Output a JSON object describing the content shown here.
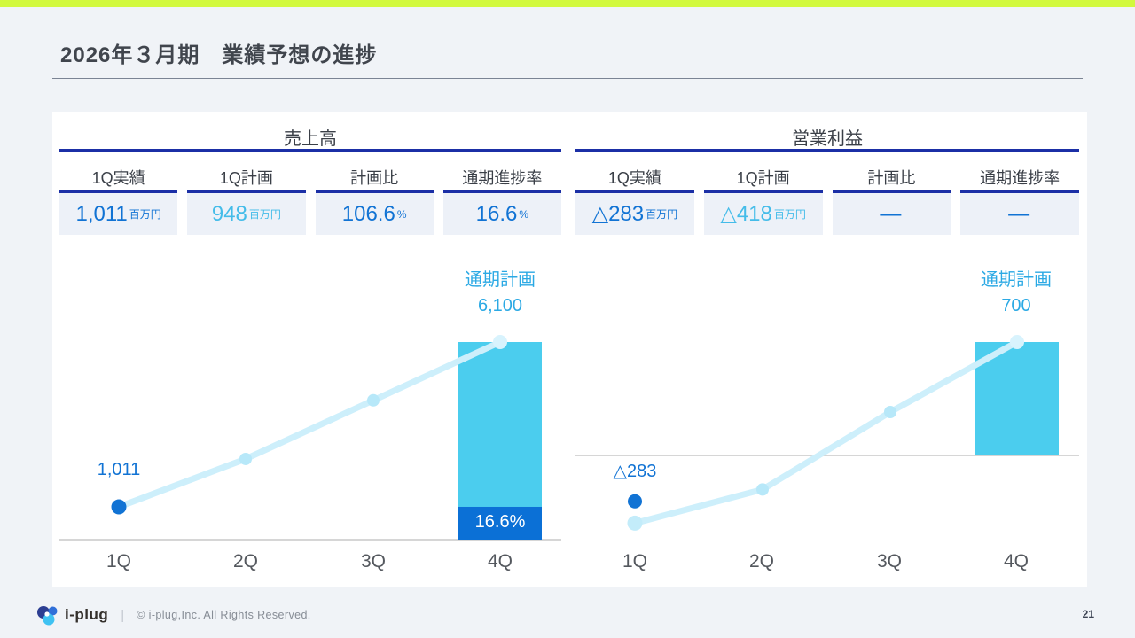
{
  "slide": {
    "title": "2026年３月期　業績予想の進捗",
    "page_number": "21"
  },
  "footer": {
    "brand": "i-plug",
    "separator": "|",
    "copyright": "© i-plug,Inc. All Rights Reserved."
  },
  "panels": [
    {
      "title": "売上高",
      "columns": [
        {
          "header": "1Q実績",
          "value": "1,011",
          "unit": "百万円",
          "tone": "actual"
        },
        {
          "header": "1Q計画",
          "value": "948",
          "unit": "百万円",
          "tone": "plan"
        },
        {
          "header": "計画比",
          "value": "106.6",
          "unit": "%",
          "tone": "actual"
        },
        {
          "header": "通期進捗率",
          "value": "16.6",
          "unit": "%",
          "tone": "actual"
        }
      ]
    },
    {
      "title": "営業利益",
      "columns": [
        {
          "header": "1Q実績",
          "value": "△283",
          "unit": "百万円",
          "tone": "actual"
        },
        {
          "header": "1Q計画",
          "value": "△418",
          "unit": "百万円",
          "tone": "plan"
        },
        {
          "header": "計画比",
          "value": "—",
          "unit": "",
          "tone": "actual"
        },
        {
          "header": "通期進捗率",
          "value": "—",
          "unit": "",
          "tone": "actual"
        }
      ]
    }
  ],
  "chart_data": [
    {
      "id": "sales",
      "type": "line+bar",
      "title": "売上高",
      "unit": "百万円",
      "categories": [
        "1Q",
        "2Q",
        "3Q",
        "4Q"
      ],
      "plan_line_est": [
        1011,
        2490,
        4300,
        6100
      ],
      "actual_1q": 1011,
      "actual_1q_label": "1,011",
      "actual_on_line": true,
      "full_year_bar": 6100,
      "plan_caption": "通期計画",
      "plan_caption_value": "6,100",
      "progress_pct": 16.6,
      "progress_label": "16.6%",
      "ylim": [
        0,
        6800
      ]
    },
    {
      "id": "profit",
      "type": "line+bar",
      "title": "営業利益",
      "unit": "百万円",
      "categories": [
        "1Q",
        "2Q",
        "3Q",
        "4Q"
      ],
      "plan_line_est": [
        -418,
        -210,
        268,
        700
      ],
      "actual_1q": -283,
      "actual_1q_label": "△283",
      "actual_on_line": false,
      "full_year_bar": 700,
      "plan_caption": "通期計画",
      "plan_caption_value": "700",
      "progress_pct": null,
      "progress_label": null,
      "ylim": [
        -550,
        800
      ]
    }
  ],
  "colors": {
    "accent_bar": "#d2f93e",
    "page_bg": "#f0f3f7",
    "navy_rule": "#1b2fa6",
    "actual_blue": "#1173d4",
    "plan_cyan": "#44bce9",
    "cell_bg": "#edf1f8",
    "bar_cyan": "#4bcdee",
    "progress_blue": "#0b70d6",
    "line_cyan": "#cdeffb",
    "marker_cyan": "#b7e8f9",
    "marker_first": "#c3ecfa",
    "marker_end": "#d8f3fd",
    "caption_cyan": "#2ba9e4",
    "baseline_gray": "#d6d6d6",
    "axis_text": "#54585e"
  }
}
